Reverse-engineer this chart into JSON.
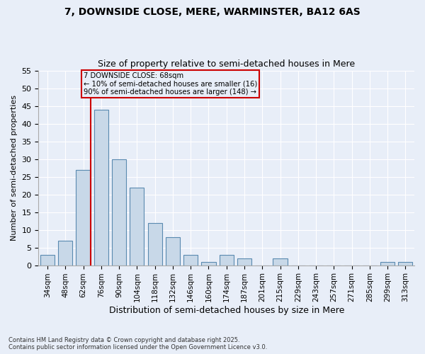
{
  "title1": "7, DOWNSIDE CLOSE, MERE, WARMINSTER, BA12 6AS",
  "title2": "Size of property relative to semi-detached houses in Mere",
  "xlabel": "Distribution of semi-detached houses by size in Mere",
  "ylabel": "Number of semi-detached properties",
  "categories": [
    "34sqm",
    "48sqm",
    "62sqm",
    "76sqm",
    "90sqm",
    "104sqm",
    "118sqm",
    "132sqm",
    "146sqm",
    "160sqm",
    "174sqm",
    "187sqm",
    "201sqm",
    "215sqm",
    "229sqm",
    "243sqm",
    "257sqm",
    "271sqm",
    "285sqm",
    "299sqm",
    "313sqm"
  ],
  "values": [
    3,
    7,
    27,
    44,
    30,
    22,
    12,
    8,
    3,
    1,
    3,
    2,
    0,
    2,
    0,
    0,
    0,
    0,
    0,
    1,
    1
  ],
  "bar_color": "#c8d8e8",
  "bar_edge_color": "#5a8ab0",
  "background_color": "#e8eef8",
  "ylim": [
    0,
    55
  ],
  "yticks": [
    0,
    5,
    10,
    15,
    20,
    25,
    30,
    35,
    40,
    45,
    50,
    55
  ],
  "annotation_title": "7 DOWNSIDE CLOSE: 68sqm",
  "annotation_line1": "← 10% of semi-detached houses are smaller (16)",
  "annotation_line2": "90% of semi-detached houses are larger (148) →",
  "annotation_box_color": "#cc0000",
  "red_line_index": 2.4,
  "footnote1": "Contains HM Land Registry data © Crown copyright and database right 2025.",
  "footnote2": "Contains public sector information licensed under the Open Government Licence v3.0."
}
